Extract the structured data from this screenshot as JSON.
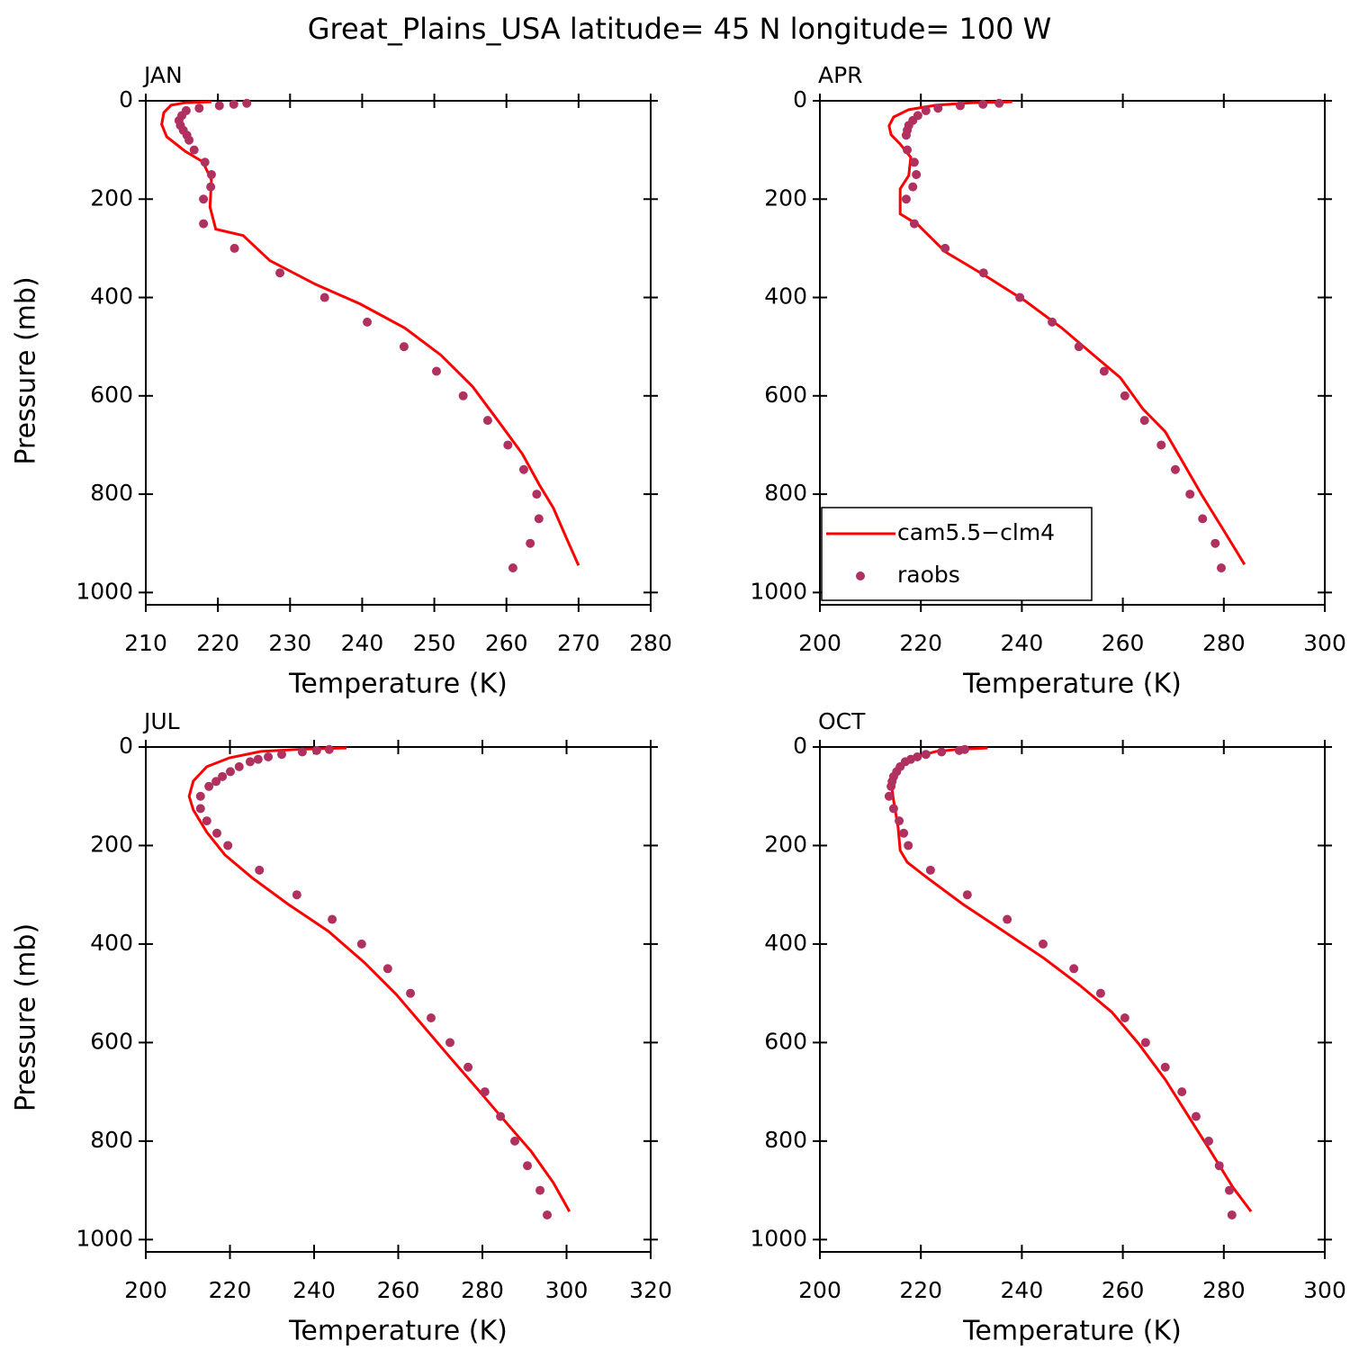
{
  "title": "Great_Plains_USA  latitude= 45 N longitude= 100 W",
  "chart_data": [
    {
      "type": "line",
      "label": "JAN",
      "xlabel": "Temperature (K)",
      "ylabel": "Pressure (mb)",
      "xlim": [
        210,
        280
      ],
      "xticks": [
        210,
        220,
        230,
        240,
        250,
        260,
        270,
        280
      ],
      "ylim": [
        1025,
        0
      ],
      "yticks": [
        0,
        200,
        400,
        600,
        800,
        1000
      ],
      "series": [
        {
          "mode": "lines",
          "color": "#ff0000",
          "x": [
            270.0,
            268.4,
            266.5,
            264.6,
            262.2,
            259.0,
            255.3,
            250.9,
            245.9,
            239.7,
            233.5,
            227.2,
            223.5,
            219.7,
            218.9,
            219.1,
            217.9,
            215.4,
            212.9,
            212.2,
            212.5,
            213.5,
            215.4,
            219.1
          ],
          "values": [
            945,
            892,
            828,
            782,
            718,
            654,
            581,
            517,
            462,
            413,
            373,
            325,
            274,
            261,
            216,
            161,
            124,
            102,
            73,
            48,
            24,
            9,
            4,
            2
          ]
        },
        {
          "mode": "markers",
          "color": "#b03060",
          "x": [
            224.0,
            222.2,
            220.2,
            217.4,
            215.6,
            215.0,
            214.6,
            214.8,
            215.2,
            215.7,
            216.0,
            216.7,
            218.2,
            219.1,
            219.0,
            218.0,
            218.0,
            222.3,
            228.6,
            234.8,
            240.7,
            245.8,
            250.3,
            254.0,
            257.4,
            260.2,
            262.4,
            264.2,
            264.5,
            263.3,
            260.9
          ],
          "values": [
            5,
            7,
            10,
            15,
            20,
            30,
            40,
            50,
            60,
            70,
            80,
            100,
            125,
            150,
            175,
            200,
            250,
            300,
            350,
            400,
            450,
            500,
            550,
            600,
            650,
            700,
            750,
            800,
            850,
            900,
            950
          ]
        }
      ]
    },
    {
      "type": "line",
      "label": "APR",
      "xlabel": "Temperature (K)",
      "xlim": [
        200,
        300
      ],
      "xticks": [
        200,
        220,
        240,
        260,
        280,
        300
      ],
      "ylim": [
        1025,
        0
      ],
      "yticks": [
        0,
        200,
        400,
        600,
        800,
        1000
      ],
      "legend": "lower left",
      "series": [
        {
          "name": "cam5.5−clm4",
          "mode": "lines",
          "color": "#ff0000",
          "x": [
            284.1,
            280.0,
            275.6,
            272.0,
            268.4,
            264.0,
            259.5,
            254.2,
            247.9,
            240.8,
            232.8,
            224.8,
            219.4,
            215.9,
            215.9,
            217.6,
            218.0,
            215.9,
            214.1,
            213.7,
            214.6,
            217.6,
            223.0,
            230.1,
            238.1
          ],
          "values": [
            943,
            874,
            801,
            737,
            673,
            627,
            563,
            517,
            462,
            408,
            356,
            307,
            252,
            230,
            179,
            152,
            115,
            88,
            69,
            51,
            33,
            18,
            9,
            4,
            2
          ]
        },
        {
          "name": "raobs",
          "mode": "markers",
          "color": "#b03060",
          "x": [
            235.5,
            232.3,
            227.8,
            223.4,
            221.0,
            219.4,
            218.4,
            217.6,
            217.3,
            217.1,
            217.3,
            218.7,
            219.1,
            218.4,
            217.1,
            218.7,
            224.8,
            232.4,
            239.6,
            246.0,
            251.3,
            256.3,
            260.4,
            264.3,
            267.6,
            270.4,
            273.3,
            275.8,
            278.3,
            279.5
          ],
          "values": [
            5,
            7,
            10,
            15,
            20,
            30,
            40,
            50,
            60,
            70,
            100,
            125,
            150,
            175,
            200,
            250,
            300,
            350,
            400,
            450,
            500,
            550,
            600,
            650,
            700,
            750,
            800,
            850,
            900,
            950
          ]
        }
      ]
    },
    {
      "type": "line",
      "label": "JUL",
      "xlabel": "Temperature (K)",
      "ylabel": "Pressure (mb)",
      "xlim": [
        200,
        320
      ],
      "xticks": [
        200,
        220,
        240,
        260,
        280,
        300,
        320
      ],
      "ylim": [
        1025,
        0
      ],
      "yticks": [
        0,
        200,
        400,
        600,
        800,
        1000
      ],
      "series": [
        {
          "mode": "lines",
          "color": "#ff0000",
          "x": [
            300.7,
            296.9,
            291.6,
            285.1,
            278.7,
            272.3,
            265.9,
            259.5,
            252.0,
            243.4,
            233.8,
            225.2,
            218.8,
            214.5,
            211.3,
            210.3,
            211.3,
            214.5,
            219.9,
            227.4,
            238.1,
            247.7
          ],
          "values": [
            943,
            885,
            821,
            757,
            693,
            630,
            566,
            502,
            438,
            374,
            319,
            265,
            219,
            173,
            128,
            100,
            69,
            40,
            22,
            9,
            4,
            2
          ]
        },
        {
          "mode": "markers",
          "color": "#b03060",
          "x": [
            243.6,
            240.6,
            237.2,
            232.3,
            229.1,
            226.7,
            224.8,
            222.2,
            220.1,
            218.2,
            216.7,
            215.0,
            213.0,
            213.0,
            214.5,
            216.9,
            219.5,
            227.0,
            235.9,
            244.3,
            251.3,
            257.5,
            262.9,
            267.8,
            272.3,
            276.6,
            280.6,
            284.3,
            287.7,
            290.7,
            293.7,
            295.4
          ],
          "values": [
            5,
            7,
            10,
            15,
            20,
            25,
            30,
            40,
            50,
            60,
            70,
            80,
            100,
            125,
            150,
            175,
            200,
            250,
            300,
            350,
            400,
            450,
            500,
            550,
            600,
            650,
            700,
            750,
            800,
            850,
            900,
            950
          ]
        }
      ]
    },
    {
      "type": "line",
      "label": "OCT",
      "xlabel": "Temperature (K)",
      "xlim": [
        200,
        300
      ],
      "xticks": [
        200,
        220,
        240,
        260,
        280,
        300
      ],
      "ylim": [
        1025,
        0
      ],
      "yticks": [
        0,
        200,
        400,
        600,
        800,
        1000
      ],
      "series": [
        {
          "mode": "lines",
          "color": "#ff0000",
          "x": [
            285.4,
            281.8,
            277.4,
            272.9,
            268.4,
            263.1,
            257.8,
            251.5,
            244.4,
            236.4,
            228.3,
            221.2,
            217.3,
            215.9,
            215.5,
            214.6,
            214.1,
            215.0,
            217.6,
            223.0,
            228.3,
            233.2
          ],
          "values": [
            943,
            894,
            821,
            748,
            675,
            602,
            538,
            484,
            429,
            374,
            319,
            265,
            234,
            210,
            164,
            109,
            73,
            46,
            24,
            9,
            4,
            2
          ]
        },
        {
          "mode": "markers",
          "color": "#b03060",
          "x": [
            228.7,
            227.6,
            224.1,
            221.0,
            219.3,
            218.0,
            216.9,
            215.9,
            215.2,
            214.6,
            214.3,
            214.1,
            213.7,
            214.6,
            215.7,
            216.6,
            217.5,
            221.9,
            229.2,
            237.1,
            244.2,
            250.3,
            255.6,
            260.4,
            264.5,
            268.4,
            271.7,
            274.5,
            277.0,
            279.1,
            281.1,
            281.6
          ],
          "values": [
            5,
            7,
            10,
            15,
            20,
            25,
            30,
            40,
            50,
            60,
            70,
            80,
            100,
            125,
            150,
            175,
            200,
            250,
            300,
            350,
            400,
            450,
            500,
            550,
            600,
            650,
            700,
            750,
            800,
            850,
            900,
            950
          ]
        }
      ]
    }
  ]
}
